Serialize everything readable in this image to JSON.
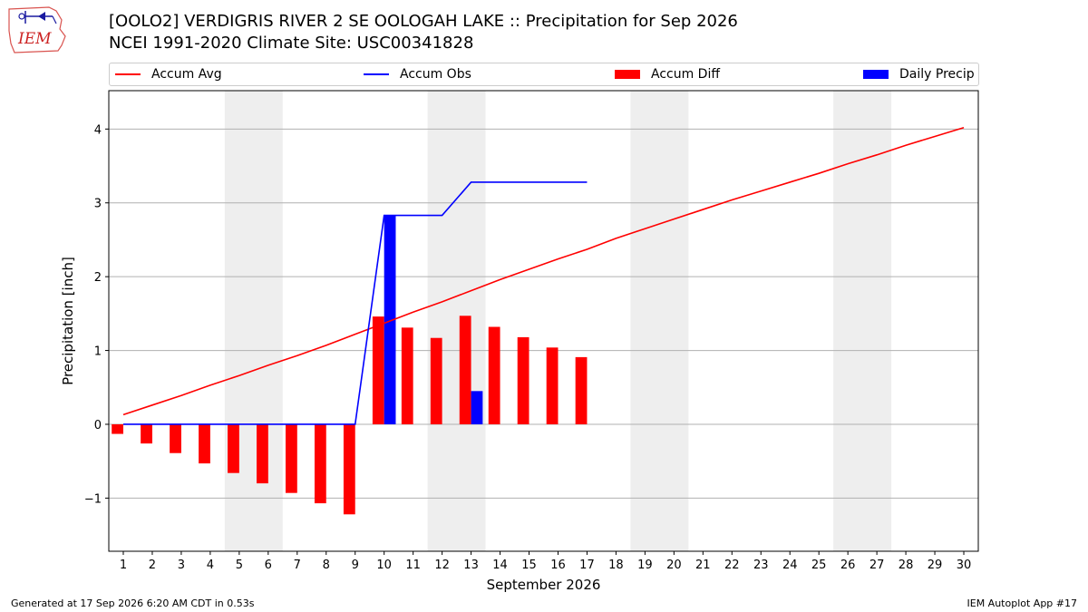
{
  "header": {
    "logo_text": "IEM",
    "title_line1": "[OOLO2] VERDIGRIS RIVER 2 SE OOLOGAH LAKE :: Precipitation for Sep 2026",
    "title_line2": "NCEI 1991-2020 Climate Site: USC00341828"
  },
  "legend": {
    "items": [
      {
        "label": "Accum Avg",
        "kind": "line",
        "color": "#ff0000"
      },
      {
        "label": "Accum Obs",
        "kind": "line",
        "color": "#0000ff"
      },
      {
        "label": "Accum Diff",
        "kind": "patch",
        "color": "#ff0000"
      },
      {
        "label": "Daily Precip",
        "kind": "patch",
        "color": "#0000ff"
      }
    ]
  },
  "footer": {
    "left": "Generated at 17 Sep 2026 6:20 AM CDT in 0.53s",
    "right": "IEM Autoplot App #17"
  },
  "chart_data": {
    "type": "bar",
    "xlabel": "September 2026",
    "ylabel": "Precipitation [inch]",
    "xlim": [
      0.5,
      30.5
    ],
    "ylim": [
      -1.72,
      4.52
    ],
    "yticks": [
      -1,
      0,
      1,
      2,
      3,
      4
    ],
    "ytick_labels": [
      "−1",
      "0",
      "1",
      "2",
      "3",
      "4"
    ],
    "xticks": [
      1,
      2,
      3,
      4,
      5,
      6,
      7,
      8,
      9,
      10,
      11,
      12,
      13,
      14,
      15,
      16,
      17,
      18,
      19,
      20,
      21,
      22,
      23,
      24,
      25,
      26,
      27,
      28,
      29,
      30
    ],
    "weekend_days": [
      5,
      6,
      12,
      13,
      19,
      20,
      26,
      27
    ],
    "grid": true,
    "colors": {
      "avg": "#ff0000",
      "obs": "#0000ff",
      "diff": "#ff0000",
      "daily": "#0000ff",
      "weekend": "#eeeeee",
      "grid": "#b0b0b0"
    },
    "series": [
      {
        "name": "Accum Avg",
        "type": "line",
        "x": [
          1,
          2,
          3,
          4,
          5,
          6,
          7,
          8,
          9,
          10,
          11,
          12,
          13,
          14,
          15,
          16,
          17,
          18,
          19,
          20,
          21,
          22,
          23,
          24,
          25,
          26,
          27,
          28,
          29,
          30
        ],
        "values": [
          0.13,
          0.26,
          0.39,
          0.53,
          0.66,
          0.8,
          0.93,
          1.07,
          1.22,
          1.37,
          1.52,
          1.66,
          1.81,
          1.96,
          2.1,
          2.24,
          2.37,
          2.52,
          2.65,
          2.78,
          2.91,
          3.04,
          3.16,
          3.28,
          3.4,
          3.53,
          3.65,
          3.78,
          3.9,
          4.02
        ]
      },
      {
        "name": "Accum Obs",
        "type": "line",
        "x": [
          1,
          2,
          3,
          4,
          5,
          6,
          7,
          8,
          9,
          10,
          11,
          12,
          13,
          14,
          15,
          16,
          17
        ],
        "values": [
          0,
          0,
          0,
          0,
          0,
          0,
          0,
          0,
          0,
          2.83,
          2.83,
          2.83,
          3.28,
          3.28,
          3.28,
          3.28,
          3.28
        ]
      },
      {
        "name": "Accum Diff",
        "type": "bar",
        "x": [
          1,
          2,
          3,
          4,
          5,
          6,
          7,
          8,
          9,
          10,
          11,
          12,
          13,
          14,
          15,
          16,
          17
        ],
        "values": [
          -0.13,
          -0.26,
          -0.39,
          -0.53,
          -0.66,
          -0.8,
          -0.93,
          -1.07,
          -1.22,
          1.46,
          1.31,
          1.17,
          1.47,
          1.32,
          1.18,
          1.04,
          0.91
        ]
      },
      {
        "name": "Daily Precip",
        "type": "bar",
        "x": [
          10,
          13
        ],
        "values": [
          2.83,
          0.45
        ]
      }
    ]
  }
}
